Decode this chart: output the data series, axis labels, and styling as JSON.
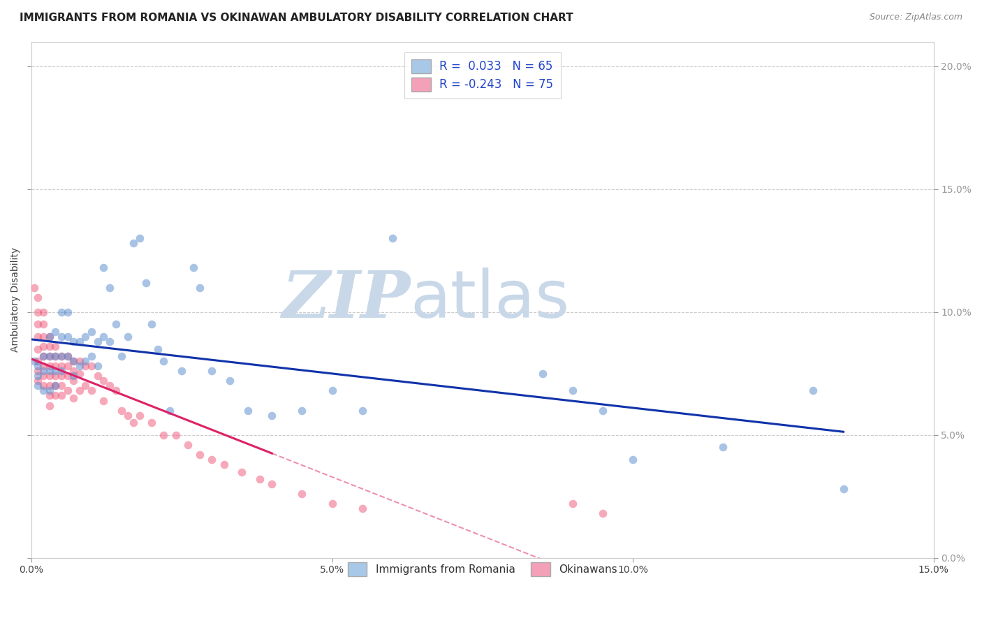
{
  "title": "IMMIGRANTS FROM ROMANIA VS OKINAWAN AMBULATORY DISABILITY CORRELATION CHART",
  "source": "Source: ZipAtlas.com",
  "ylabel": "Ambulatory Disability",
  "xlim": [
    0.0,
    0.15
  ],
  "ylim": [
    0.0,
    0.21
  ],
  "xticks": [
    0.0,
    0.05,
    0.1,
    0.15
  ],
  "yticks": [
    0.0,
    0.05,
    0.1,
    0.15,
    0.2
  ],
  "xtick_labels": [
    "0.0%",
    "5.0%",
    "10.0%",
    "15.0%"
  ],
  "ytick_labels_right": [
    "0.0%",
    "5.0%",
    "10.0%",
    "15.0%",
    "20.0%"
  ],
  "legend_top": [
    {
      "label": "R =  0.033   N = 65",
      "facecolor": "#a8c8e8"
    },
    {
      "label": "R = -0.243   N = 75",
      "facecolor": "#f4a0b8"
    }
  ],
  "legend_bottom": [
    {
      "label": "Immigrants from Romania",
      "facecolor": "#a8c8e8"
    },
    {
      "label": "Okinawans",
      "facecolor": "#f4a0b8"
    }
  ],
  "romania_color": "#5588cc",
  "okinawa_color": "#ee5577",
  "romania_line_color": "#1133aa",
  "okinawa_line_color": "#dd2266",
  "background_color": "#ffffff",
  "grid_color": "#cccccc",
  "title_fontsize": 11,
  "axis_label_fontsize": 10,
  "tick_fontsize": 10,
  "scatter_size": 70,
  "scatter_alpha": 0.5,
  "romania_scatter": {
    "x": [
      0.0005,
      0.001,
      0.001,
      0.001,
      0.002,
      0.002,
      0.002,
      0.003,
      0.003,
      0.003,
      0.003,
      0.004,
      0.004,
      0.004,
      0.004,
      0.005,
      0.005,
      0.005,
      0.005,
      0.006,
      0.006,
      0.006,
      0.007,
      0.007,
      0.007,
      0.008,
      0.008,
      0.009,
      0.009,
      0.01,
      0.01,
      0.011,
      0.011,
      0.012,
      0.012,
      0.013,
      0.013,
      0.014,
      0.015,
      0.016,
      0.017,
      0.018,
      0.019,
      0.02,
      0.021,
      0.022,
      0.023,
      0.025,
      0.027,
      0.028,
      0.03,
      0.033,
      0.036,
      0.04,
      0.045,
      0.05,
      0.055,
      0.06,
      0.085,
      0.09,
      0.095,
      0.1,
      0.115,
      0.13,
      0.135
    ],
    "y": [
      0.08,
      0.078,
      0.074,
      0.07,
      0.082,
      0.076,
      0.068,
      0.09,
      0.082,
      0.076,
      0.068,
      0.092,
      0.082,
      0.076,
      0.07,
      0.1,
      0.09,
      0.082,
      0.076,
      0.1,
      0.09,
      0.082,
      0.088,
      0.08,
      0.074,
      0.088,
      0.078,
      0.09,
      0.08,
      0.092,
      0.082,
      0.088,
      0.078,
      0.118,
      0.09,
      0.11,
      0.088,
      0.095,
      0.082,
      0.09,
      0.128,
      0.13,
      0.112,
      0.095,
      0.085,
      0.08,
      0.06,
      0.076,
      0.118,
      0.11,
      0.076,
      0.072,
      0.06,
      0.058,
      0.06,
      0.068,
      0.06,
      0.13,
      0.075,
      0.068,
      0.06,
      0.04,
      0.045,
      0.068,
      0.028
    ]
  },
  "okinawa_scatter": {
    "x": [
      0.0005,
      0.001,
      0.001,
      0.001,
      0.001,
      0.001,
      0.001,
      0.001,
      0.001,
      0.002,
      0.002,
      0.002,
      0.002,
      0.002,
      0.002,
      0.002,
      0.002,
      0.003,
      0.003,
      0.003,
      0.003,
      0.003,
      0.003,
      0.003,
      0.003,
      0.004,
      0.004,
      0.004,
      0.004,
      0.004,
      0.004,
      0.005,
      0.005,
      0.005,
      0.005,
      0.005,
      0.006,
      0.006,
      0.006,
      0.006,
      0.007,
      0.007,
      0.007,
      0.007,
      0.008,
      0.008,
      0.008,
      0.009,
      0.009,
      0.01,
      0.01,
      0.011,
      0.012,
      0.012,
      0.013,
      0.014,
      0.015,
      0.016,
      0.017,
      0.018,
      0.02,
      0.022,
      0.024,
      0.026,
      0.028,
      0.03,
      0.032,
      0.035,
      0.038,
      0.04,
      0.045,
      0.05,
      0.055,
      0.09,
      0.095
    ],
    "y": [
      0.11,
      0.106,
      0.1,
      0.095,
      0.09,
      0.085,
      0.08,
      0.076,
      0.072,
      0.1,
      0.095,
      0.09,
      0.086,
      0.082,
      0.078,
      0.074,
      0.07,
      0.09,
      0.086,
      0.082,
      0.078,
      0.074,
      0.07,
      0.066,
      0.062,
      0.086,
      0.082,
      0.078,
      0.074,
      0.07,
      0.066,
      0.082,
      0.078,
      0.074,
      0.07,
      0.066,
      0.082,
      0.078,
      0.074,
      0.068,
      0.08,
      0.076,
      0.072,
      0.065,
      0.08,
      0.075,
      0.068,
      0.078,
      0.07,
      0.078,
      0.068,
      0.074,
      0.072,
      0.064,
      0.07,
      0.068,
      0.06,
      0.058,
      0.055,
      0.058,
      0.055,
      0.05,
      0.05,
      0.046,
      0.042,
      0.04,
      0.038,
      0.035,
      0.032,
      0.03,
      0.026,
      0.022,
      0.02,
      0.022,
      0.018
    ]
  },
  "watermark_zip": "ZIP",
  "watermark_atlas": "atlas",
  "watermark_color": "#c8d8e8"
}
